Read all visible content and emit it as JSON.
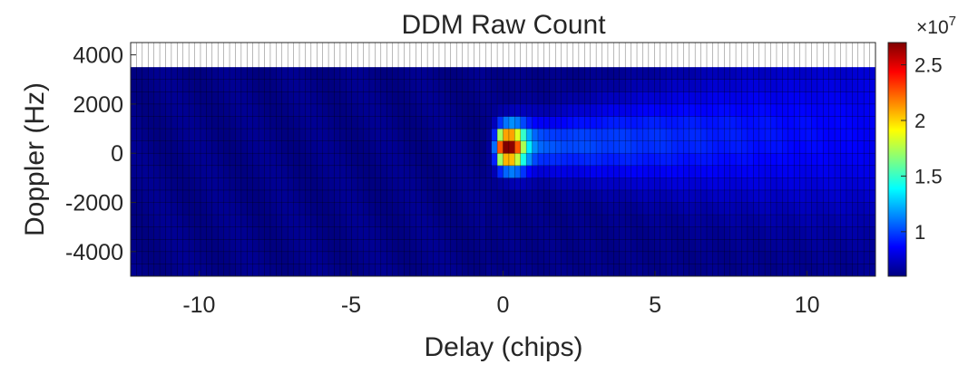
{
  "chart_data": {
    "type": "heatmap",
    "title": "DDM Raw Count",
    "xlabel": "Delay (chips)",
    "ylabel": "Doppler (Hz)",
    "x_ticks": [
      "-10",
      "-5",
      "0",
      "5",
      "10"
    ],
    "x_tick_values": [
      -10,
      -5,
      0,
      5,
      10
    ],
    "y_ticks": [
      "4000",
      "2000",
      "0",
      "-2000",
      "-4000"
    ],
    "y_tick_values": [
      4000,
      2000,
      0,
      -2000,
      -4000
    ],
    "xlim": [
      -12.25,
      12.25
    ],
    "ylim": [
      -5000,
      4500
    ],
    "x_bins": 128,
    "y_bins": 17,
    "y_bin_start": -5000,
    "y_bin_step": 500,
    "colorbar": {
      "ticks": [
        "1",
        "1.5",
        "2",
        "2.5"
      ],
      "tick_values": [
        1.0,
        1.5,
        2.0,
        2.5
      ],
      "range": [
        0.6,
        2.7
      ],
      "exponent_base": "×10",
      "exponent_power": "7"
    },
    "colormap": "jet",
    "grid_color": "#000000",
    "peak": {
      "delay": 0.2,
      "doppler": 250,
      "value": 2.65
    },
    "background_level": 0.62
  }
}
